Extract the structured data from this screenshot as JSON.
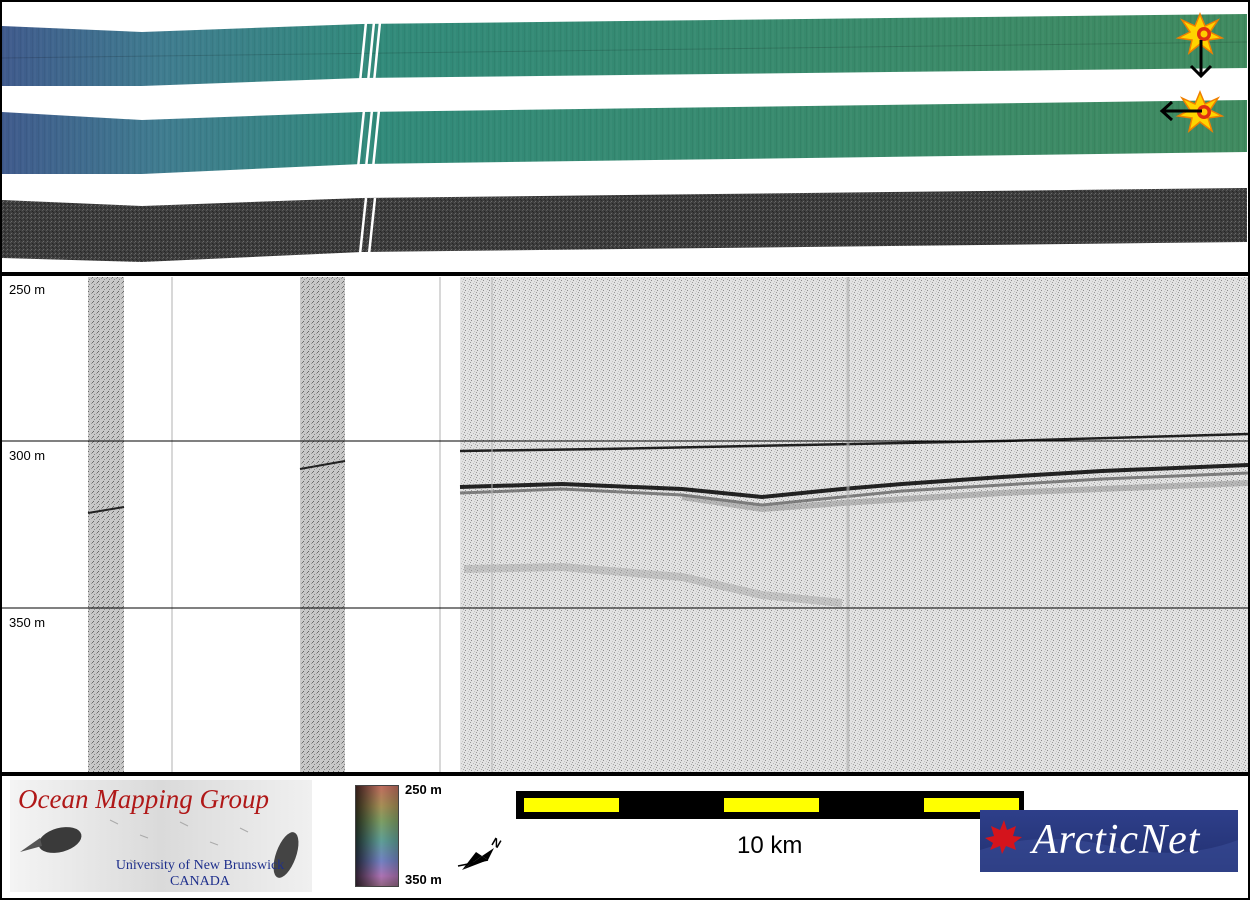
{
  "top_panel": {
    "description_icons": [
      "explosion-icon",
      "arrow-down-icon",
      "explosion-icon",
      "arrow-left-icon"
    ],
    "swath_colors": {
      "left": "#3c5c8a",
      "mid": "#2f8a7a",
      "right": "#3e8a5e",
      "backscatter": "#444444"
    }
  },
  "profile": {
    "depth_labels": [
      "250 m",
      "300 m",
      "350 m"
    ]
  },
  "footer": {
    "logo_left": {
      "title": "Ocean Mapping Group",
      "line1": "University of New Brunswick",
      "line2": "CANADA"
    },
    "colorbar": {
      "top_label": "250 m",
      "bottom_label": "350 m"
    },
    "north_label": "N",
    "scale_label": "10 km",
    "scale_colors": {
      "fill": "#ffff00",
      "dark": "#000000"
    },
    "logo_right": {
      "text": "ArcticNet"
    }
  }
}
